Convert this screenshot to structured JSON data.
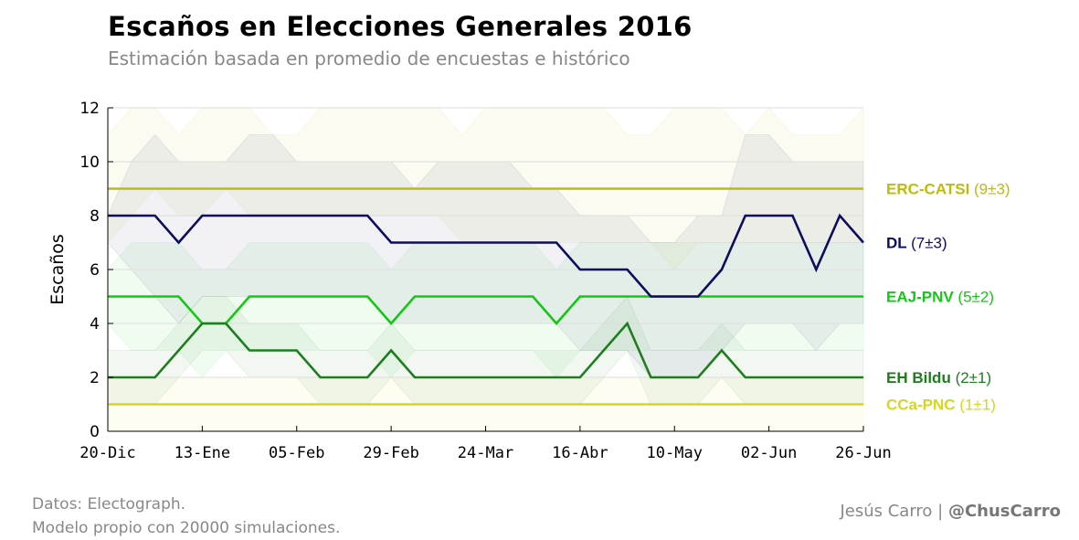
{
  "header": {
    "title": "Escaños en Elecciones Generales 2016",
    "subtitle": "Estimación basada en promedio de encuestas e histórico"
  },
  "footer": {
    "source_line1": "Datos: Electograph.",
    "source_line2": "Modelo propio con 20000 simulaciones.",
    "author_name": "Jesús Carro |",
    "author_handle": "@ChusCarro"
  },
  "chart_data": {
    "type": "line",
    "title": "Escaños en Elecciones Generales 2016",
    "subtitle": "Estimación basada en promedio de encuestas e histórico",
    "xlabel": "",
    "ylabel": "Escaños",
    "ylim": [
      0,
      12
    ],
    "yticks": [
      0,
      2,
      4,
      6,
      8,
      10,
      12
    ],
    "x_tick_labels": [
      "20-Dic",
      "13-Ene",
      "05-Feb",
      "29-Feb",
      "24-Mar",
      "16-Abr",
      "10-May",
      "02-Jun",
      "26-Jun"
    ],
    "grid": "horizontal",
    "legend": "right, inline labels",
    "x": [
      "2015-12-20",
      "2015-12-26",
      "2016-01-01",
      "2016-01-07",
      "2016-01-13",
      "2016-01-19",
      "2016-01-25",
      "2016-01-31",
      "2016-02-06",
      "2016-02-12",
      "2016-02-18",
      "2016-02-24",
      "2016-02-29",
      "2016-03-06",
      "2016-03-12",
      "2016-03-18",
      "2016-03-24",
      "2016-03-30",
      "2016-04-05",
      "2016-04-10",
      "2016-04-16",
      "2016-04-22",
      "2016-04-28",
      "2016-05-04",
      "2016-05-10",
      "2016-05-16",
      "2016-05-22",
      "2016-05-28",
      "2016-06-02",
      "2016-06-08",
      "2016-06-14",
      "2016-06-20",
      "2016-06-26"
    ],
    "series": [
      {
        "name": "ERC-CATSI",
        "range_label": "(9±3)",
        "color": "#bcbc0a",
        "values": [
          9,
          9,
          9,
          9,
          9,
          9,
          9,
          9,
          9,
          9,
          9,
          9,
          9,
          9,
          9,
          9,
          9,
          9,
          9,
          9,
          9,
          9,
          9,
          9,
          9,
          9,
          9,
          9,
          9,
          9,
          9,
          9,
          9
        ],
        "lower": [
          7,
          8,
          9,
          8,
          8,
          9,
          8,
          8,
          8,
          8,
          8,
          8,
          8,
          8,
          8,
          7,
          7,
          7,
          7,
          7,
          7,
          7,
          7,
          7,
          6,
          7,
          7,
          7,
          7,
          7,
          7,
          7,
          7
        ],
        "upper": [
          11,
          12,
          12,
          11,
          12,
          12,
          12,
          11,
          11,
          12,
          12,
          12,
          12,
          12,
          12,
          11,
          12,
          12,
          12,
          12,
          12,
          12,
          11,
          11,
          12,
          12,
          12,
          11,
          12,
          11,
          11,
          11,
          12
        ]
      },
      {
        "name": "DL",
        "range_label": "(7±3)",
        "color": "#0d0d5e",
        "values": [
          8,
          8,
          8,
          7,
          8,
          8,
          8,
          8,
          8,
          8,
          8,
          8,
          7,
          7,
          7,
          7,
          7,
          7,
          7,
          7,
          6,
          6,
          6,
          5,
          5,
          5,
          6,
          8,
          8,
          8,
          6,
          8,
          7
        ],
        "lower": [
          7,
          6,
          5,
          4,
          5,
          5,
          5,
          5,
          5,
          5,
          5,
          5,
          4,
          4,
          4,
          4,
          4,
          4,
          4,
          4,
          3,
          3,
          3,
          2,
          2,
          2,
          3,
          4,
          4,
          4,
          3,
          4,
          4
        ],
        "upper": [
          8,
          10,
          11,
          10,
          10,
          10,
          11,
          11,
          10,
          10,
          10,
          10,
          10,
          9,
          10,
          10,
          10,
          10,
          9,
          9,
          8,
          8,
          8,
          7,
          7,
          8,
          8,
          11,
          11,
          10,
          10,
          10,
          10
        ]
      },
      {
        "name": "EAJ-PNV",
        "range_label": "(5±2)",
        "color": "#15c715",
        "values": [
          5,
          5,
          5,
          5,
          4,
          4,
          5,
          5,
          5,
          5,
          5,
          5,
          4,
          5,
          5,
          5,
          5,
          5,
          5,
          4,
          5,
          5,
          5,
          5,
          5,
          5,
          5,
          5,
          5,
          5,
          5,
          5,
          5
        ],
        "lower": [
          4,
          3,
          3,
          3,
          2,
          3,
          3,
          3,
          3,
          3,
          3,
          3,
          2,
          3,
          3,
          3,
          3,
          3,
          3,
          2,
          3,
          3,
          3,
          3,
          3,
          3,
          3,
          3,
          3,
          3,
          3,
          3,
          3
        ],
        "upper": [
          6,
          7,
          7,
          7,
          6,
          6,
          7,
          7,
          7,
          7,
          7,
          7,
          6,
          7,
          7,
          7,
          7,
          7,
          7,
          6,
          7,
          7,
          7,
          7,
          7,
          7,
          7,
          7,
          7,
          7,
          7,
          7,
          7
        ]
      },
      {
        "name": "EH Bildu",
        "range_label": "(2±1)",
        "color": "#1e7e1e",
        "values": [
          2,
          2,
          2,
          3,
          4,
          4,
          3,
          3,
          3,
          2,
          2,
          2,
          3,
          2,
          2,
          2,
          2,
          2,
          2,
          2,
          2,
          3,
          4,
          2,
          2,
          2,
          3,
          2,
          2,
          2,
          2,
          2,
          2
        ],
        "lower": [
          1,
          1,
          1,
          2,
          3,
          3,
          2,
          2,
          2,
          1,
          1,
          1,
          2,
          1,
          1,
          1,
          1,
          1,
          1,
          1,
          1,
          2,
          3,
          1,
          1,
          1,
          2,
          1,
          1,
          1,
          1,
          1,
          1
        ],
        "upper": [
          3,
          3,
          3,
          4,
          5,
          5,
          4,
          4,
          4,
          3,
          3,
          3,
          4,
          3,
          3,
          3,
          3,
          3,
          3,
          3,
          3,
          4,
          5,
          3,
          3,
          3,
          4,
          3,
          3,
          3,
          3,
          3,
          3
        ]
      },
      {
        "name": "CCa-PNC",
        "range_label": "(1±1)",
        "color": "#d6d61c",
        "values": [
          1,
          1,
          1,
          1,
          1,
          1,
          1,
          1,
          1,
          1,
          1,
          1,
          1,
          1,
          1,
          1,
          1,
          1,
          1,
          1,
          1,
          1,
          1,
          1,
          1,
          1,
          1,
          1,
          1,
          1,
          1,
          1,
          1
        ],
        "lower": [
          0,
          0,
          0,
          0,
          0,
          0,
          0,
          0,
          0,
          0,
          0,
          0,
          0,
          0,
          0,
          0,
          0,
          0,
          0,
          0,
          0,
          0,
          0,
          0,
          0,
          0,
          0,
          0,
          0,
          0,
          0,
          0,
          0
        ],
        "upper": [
          2,
          2,
          2,
          2,
          2,
          2,
          2,
          2,
          2,
          2,
          2,
          2,
          2,
          2,
          2,
          2,
          2,
          2,
          2,
          2,
          2,
          2,
          2,
          2,
          2,
          2,
          2,
          2,
          2,
          2,
          2,
          2,
          2
        ]
      }
    ]
  }
}
